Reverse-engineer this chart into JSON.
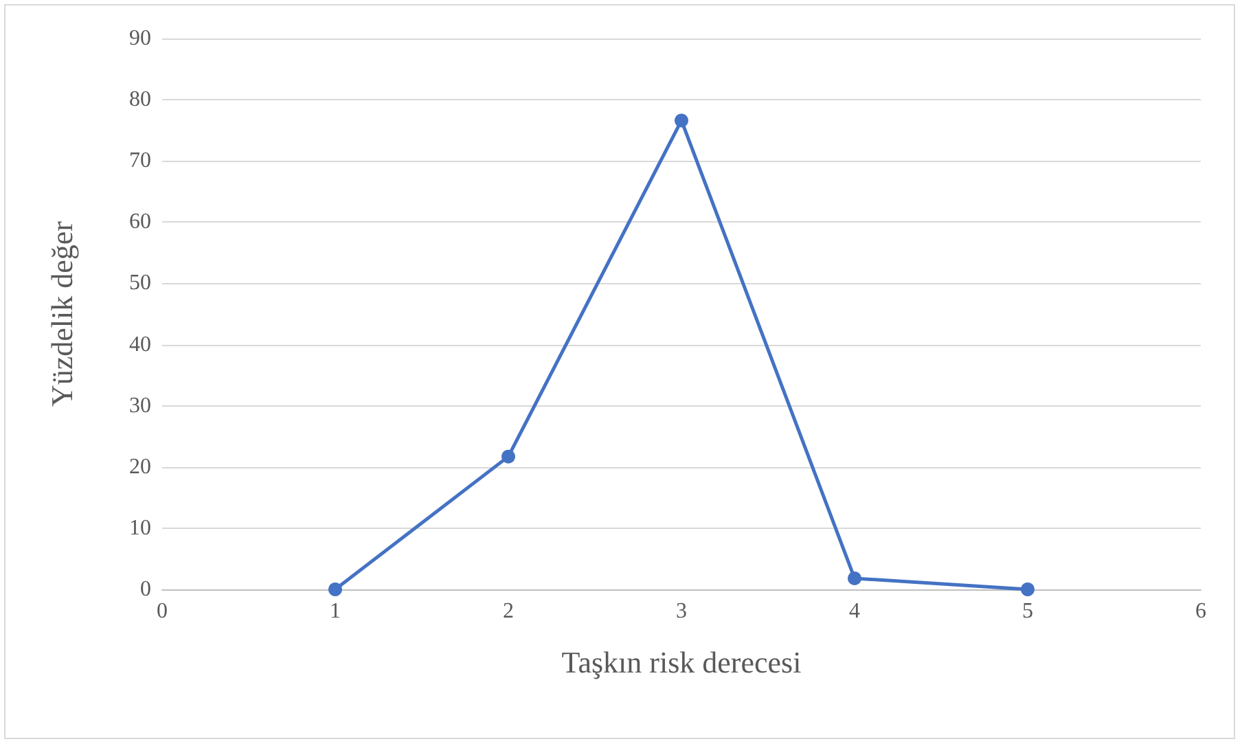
{
  "chart_data": {
    "type": "line",
    "xlabel": "Taşkın risk derecesi",
    "ylabel": "Yüzdelik değer",
    "x": [
      1,
      2,
      3,
      4,
      5
    ],
    "series": [
      {
        "color": "#4472c4",
        "values": [
          0,
          21.7,
          76.6,
          1.8,
          0
        ]
      }
    ],
    "xlim": [
      0,
      6
    ],
    "xticks": [
      0,
      1,
      2,
      3,
      4,
      5,
      6
    ],
    "ylim": [
      0,
      90
    ],
    "yticks": [
      0,
      10,
      20,
      30,
      40,
      50,
      60,
      70,
      80,
      90
    ],
    "grid": "y",
    "marker": "circle",
    "line_style": "solid"
  }
}
